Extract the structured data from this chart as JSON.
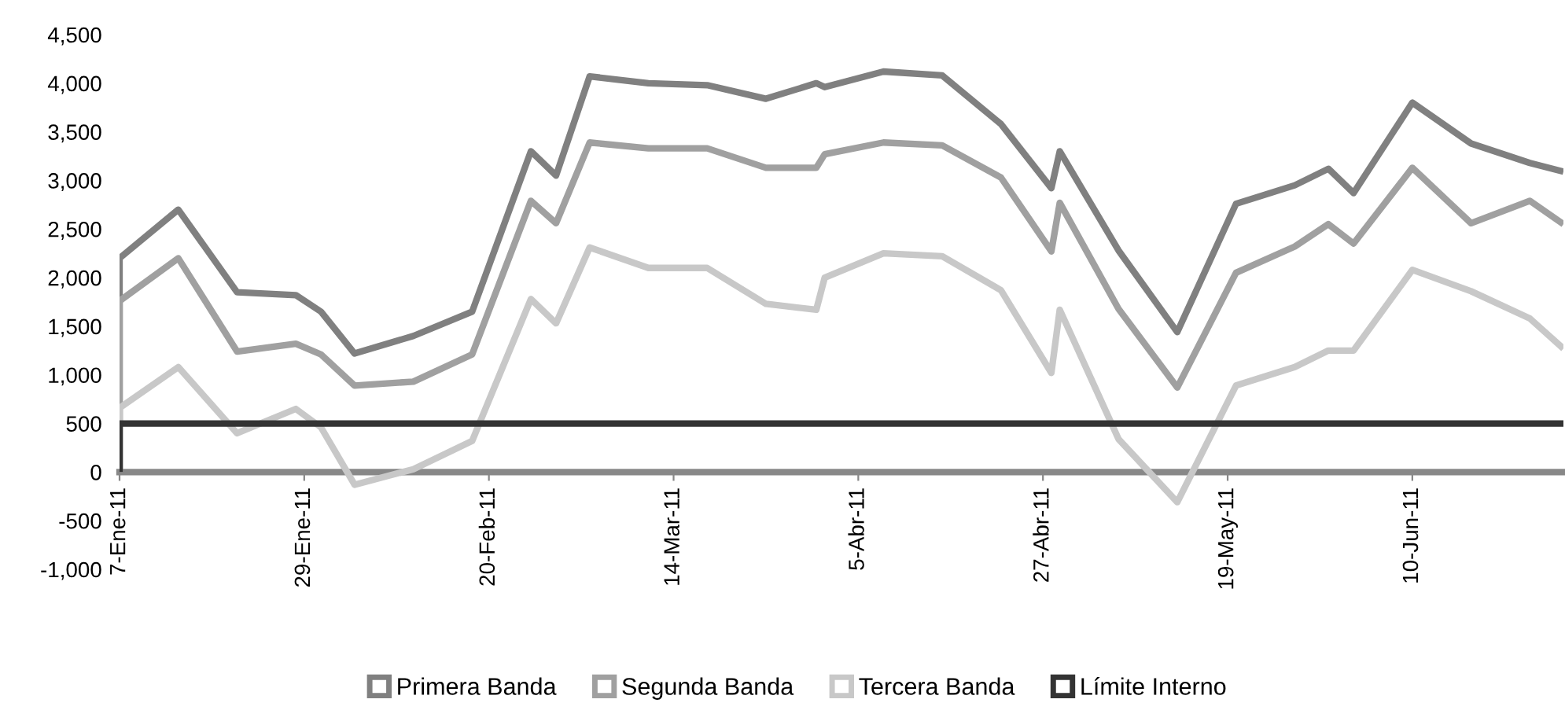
{
  "chart_data": {
    "type": "line",
    "x": [
      "2011-01-07",
      "2011-01-07",
      "2011-01-14",
      "2011-01-21",
      "2011-01-28",
      "2011-01-31",
      "2011-02-04",
      "2011-02-11",
      "2011-02-18",
      "2011-02-25",
      "2011-02-28",
      "2011-03-04",
      "2011-03-11",
      "2011-03-18",
      "2011-03-25",
      "2011-03-31",
      "2011-04-01",
      "2011-04-08",
      "2011-04-15",
      "2011-04-22",
      "2011-04-28",
      "2011-04-29",
      "2011-05-06",
      "2011-05-13",
      "2011-05-20",
      "2011-05-27",
      "2011-05-31",
      "2011-06-03",
      "2011-06-10",
      "2011-06-17",
      "2011-06-24",
      "2011-06-28"
    ],
    "series": [
      {
        "name": "Primera Banda",
        "color": "#808080",
        "values": [
          0,
          2200,
          2700,
          1850,
          1820,
          1650,
          1220,
          1400,
          1650,
          3300,
          3050,
          4070,
          4000,
          3980,
          3840,
          4000,
          3960,
          4120,
          4080,
          3580,
          2920,
          3300,
          2280,
          1440,
          2760,
          2950,
          3120,
          2870,
          3800,
          3380,
          3180,
          3090
        ]
      },
      {
        "name": "Segunda Banda",
        "color": "#a0a0a0",
        "values": [
          0,
          1760,
          2200,
          1240,
          1320,
          1210,
          890,
          930,
          1210,
          2790,
          2560,
          3390,
          3330,
          3330,
          3130,
          3130,
          3270,
          3390,
          3360,
          3030,
          2270,
          2770,
          1680,
          870,
          2050,
          2320,
          2550,
          2350,
          3130,
          2560,
          2790,
          2550
        ]
      },
      {
        "name": "Tercera Banda",
        "color": "#c8c8c8",
        "values": [
          0,
          660,
          1080,
          400,
          650,
          460,
          -130,
          30,
          320,
          1780,
          1530,
          2310,
          2100,
          2100,
          1730,
          1670,
          2000,
          2250,
          2220,
          1870,
          1020,
          1670,
          340,
          -310,
          890,
          1080,
          1250,
          1250,
          2080,
          1860,
          1580,
          1270
        ]
      },
      {
        "name": "Límite Interno",
        "color": "#333333",
        "values": [
          0,
          500,
          500,
          500,
          500,
          500,
          500,
          500,
          500,
          500,
          500,
          500,
          500,
          500,
          500,
          500,
          500,
          500,
          500,
          500,
          500,
          500,
          500,
          500,
          500,
          500,
          500,
          500,
          500,
          500,
          500,
          500
        ]
      }
    ],
    "xlim": [
      "2011-01-07",
      "2011-06-28"
    ],
    "xticks": [
      {
        "value": "2011-01-07",
        "label": "7-Ene-11"
      },
      {
        "value": "2011-01-29",
        "label": "29-Ene-11"
      },
      {
        "value": "2011-02-20",
        "label": "20-Feb-11"
      },
      {
        "value": "2011-03-14",
        "label": "14-Mar-11"
      },
      {
        "value": "2011-04-05",
        "label": "5-Abr-11"
      },
      {
        "value": "2011-04-27",
        "label": "27-Abr-11"
      },
      {
        "value": "2011-05-19",
        "label": "19-May-11"
      },
      {
        "value": "2011-06-10",
        "label": "10-Jun-11"
      }
    ],
    "ylim": [
      -1000,
      4500
    ],
    "yticks": [
      {
        "value": -1000,
        "label": "-1,000"
      },
      -500,
      0,
      500,
      {
        "value": 1000,
        "label": "1,000"
      },
      {
        "value": 1500,
        "label": "1,500"
      },
      {
        "value": 2000,
        "label": "2,000"
      },
      {
        "value": 2500,
        "label": "2,500"
      },
      {
        "value": 3000,
        "label": "3,000"
      },
      {
        "value": 3500,
        "label": "3,500"
      },
      {
        "value": 4000,
        "label": "4,000"
      },
      {
        "value": 4500,
        "label": "4,500"
      }
    ],
    "legend": "bottom",
    "marker": "none",
    "line_style": "solid"
  }
}
